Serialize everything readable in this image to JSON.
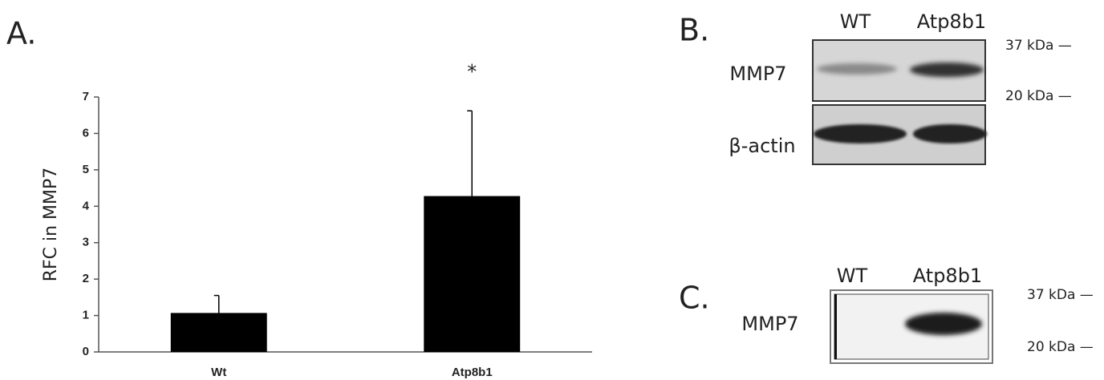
{
  "chart_data": {
    "type": "bar",
    "panel_label": "A.",
    "ylabel": "RFC in MMP7",
    "categories": [
      "Wt",
      "Atp8b1"
    ],
    "values": [
      1.07,
      4.28
    ],
    "errors": [
      0.48,
      2.34
    ],
    "annotations": [
      null,
      "*"
    ],
    "color": "#000000",
    "ylim": [
      0,
      7
    ],
    "yticks": [
      0,
      1,
      2,
      3,
      4,
      5,
      6,
      7
    ],
    "grid": false
  },
  "panel_b": {
    "label": "B.",
    "columns": [
      "WT",
      "Atp8b1"
    ],
    "rows": [
      "MMP7",
      "β-actin"
    ],
    "markers": [
      "37 kDa —",
      "20 kDa —"
    ]
  },
  "panel_c": {
    "label": "C.",
    "columns": [
      "WT",
      "Atp8b1"
    ],
    "rows": [
      "MMP7"
    ],
    "markers": [
      "37 kDa —",
      "20 kDa —"
    ]
  }
}
